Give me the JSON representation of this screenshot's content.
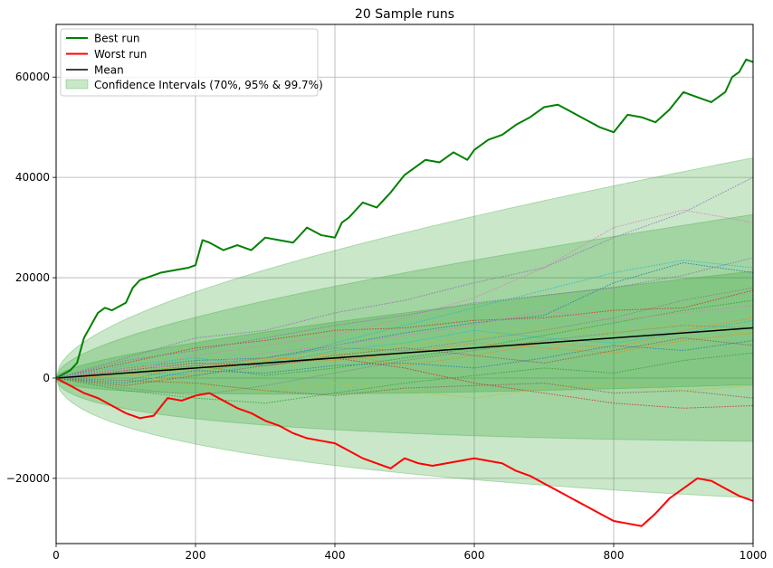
{
  "chart_data": {
    "type": "line",
    "title": "20 Sample runs",
    "xlabel": "",
    "ylabel": "",
    "xlim": [
      0,
      1000
    ],
    "ylim": [
      -33000,
      70500
    ],
    "grid": true,
    "legend_position": "top-left",
    "x_ticks": [
      0,
      200,
      400,
      600,
      800,
      1000
    ],
    "y_ticks": [
      -20000,
      0,
      20000,
      40000,
      60000
    ],
    "x_tick_labels": [
      "0",
      "200",
      "400",
      "600",
      "800",
      "1000"
    ],
    "y_tick_labels": [
      "−20000",
      "0",
      "20000",
      "40000",
      "60000"
    ],
    "legend": {
      "best": "Best run",
      "worst": "Worst run",
      "mean": "Mean",
      "ci": "Confidence Intervals (70%, 95% & 99.7%)"
    },
    "colors": {
      "best": "#008000",
      "worst": "#ff0000",
      "mean": "#000000",
      "ci_fill": "#2ca02c",
      "grid": "#b0b0b0"
    },
    "mean": {
      "x": [
        0,
        1000
      ],
      "y": [
        0,
        10000
      ]
    },
    "confidence_intervals": {
      "x": [
        0,
        1000
      ],
      "sigma_at_end": 11300,
      "levels": [
        {
          "label": "70%",
          "z": 1.0
        },
        {
          "label": "95%",
          "z": 2.0
        },
        {
          "label": "99.7%",
          "z": 3.0
        }
      ]
    },
    "series": [
      {
        "name": "Best run",
        "x": [
          0,
          20,
          30,
          40,
          50,
          60,
          70,
          80,
          100,
          110,
          120,
          130,
          150,
          170,
          190,
          200,
          210,
          220,
          240,
          260,
          280,
          300,
          320,
          340,
          360,
          380,
          400,
          410,
          420,
          440,
          460,
          480,
          500,
          520,
          530,
          550,
          570,
          590,
          600,
          620,
          640,
          660,
          680,
          700,
          720,
          740,
          760,
          780,
          800,
          820,
          840,
          860,
          880,
          900,
          920,
          940,
          960,
          970,
          980,
          990,
          1000
        ],
        "y": [
          0,
          1500,
          3000,
          8000,
          10500,
          13000,
          14000,
          13500,
          15000,
          18000,
          19500,
          20000,
          21000,
          21500,
          22000,
          22500,
          27500,
          27000,
          25500,
          26500,
          25500,
          28000,
          27500,
          27000,
          30000,
          28500,
          28000,
          31000,
          32000,
          35000,
          34000,
          37000,
          40500,
          42500,
          43500,
          43000,
          45000,
          43500,
          45500,
          47500,
          48500,
          50500,
          52000,
          54000,
          54500,
          53000,
          51500,
          50000,
          49000,
          52500,
          52000,
          51000,
          53500,
          57000,
          56000,
          55000,
          57000,
          60000,
          61000,
          63500,
          63000
        ]
      },
      {
        "name": "Worst run",
        "x": [
          0,
          20,
          40,
          60,
          80,
          100,
          120,
          140,
          160,
          180,
          200,
          220,
          240,
          260,
          280,
          300,
          320,
          340,
          360,
          380,
          400,
          420,
          440,
          460,
          480,
          500,
          520,
          540,
          560,
          580,
          600,
          620,
          640,
          660,
          680,
          700,
          720,
          740,
          760,
          780,
          800,
          820,
          840,
          860,
          880,
          900,
          920,
          940,
          960,
          980,
          1000
        ],
        "y": [
          0,
          -1500,
          -3000,
          -4000,
          -5500,
          -7000,
          -8000,
          -7500,
          -4000,
          -4500,
          -3500,
          -3000,
          -4500,
          -6000,
          -7000,
          -8500,
          -9500,
          -11000,
          -12000,
          -12500,
          -13000,
          -14500,
          -16000,
          -17000,
          -18000,
          -16000,
          -17000,
          -17500,
          -17000,
          -16500,
          -16000,
          -16500,
          -17000,
          -18500,
          -19500,
          -21000,
          -22500,
          -24000,
          -25500,
          -27000,
          -28500,
          -29000,
          -29500,
          -27000,
          -24000,
          -22000,
          -20000,
          -20500,
          -22000,
          -23500,
          -24500
        ]
      },
      {
        "name": "",
        "x": [
          0,
          100,
          200,
          300,
          400,
          500,
          600,
          700,
          800,
          900,
          1000
        ],
        "y": [
          0,
          2000,
          3500,
          4000,
          6500,
          9000,
          11000,
          12500,
          19000,
          23000,
          21000
        ],
        "color": "#1f77b4"
      },
      {
        "name": "",
        "x": [
          0,
          100,
          200,
          300,
          400,
          500,
          600,
          700,
          800,
          900,
          1000
        ],
        "y": [
          0,
          -1500,
          1000,
          3500,
          5000,
          2500,
          4500,
          7000,
          6000,
          9500,
          12000
        ],
        "color": "#ff7f0e"
      },
      {
        "name": "",
        "x": [
          0,
          100,
          200,
          300,
          400,
          500,
          600,
          700,
          800,
          900,
          1000
        ],
        "y": [
          0,
          1000,
          2500,
          500,
          2000,
          4000,
          6000,
          8500,
          11000,
          13500,
          15500
        ],
        "color": "#2ca02c"
      },
      {
        "name": "",
        "x": [
          0,
          100,
          200,
          300,
          400,
          500,
          600,
          700,
          800,
          900,
          1000
        ],
        "y": [
          0,
          3000,
          6000,
          7500,
          9500,
          10000,
          11500,
          12000,
          13500,
          14000,
          17500
        ],
        "color": "#d62728"
      },
      {
        "name": "",
        "x": [
          0,
          100,
          200,
          300,
          400,
          500,
          600,
          700,
          800,
          900,
          1000
        ],
        "y": [
          0,
          4000,
          8000,
          9500,
          13000,
          15500,
          19000,
          22000,
          28000,
          33000,
          40000
        ],
        "color": "#9467bd"
      },
      {
        "name": "",
        "x": [
          0,
          100,
          200,
          300,
          400,
          500,
          600,
          700,
          800,
          900,
          1000
        ],
        "y": [
          0,
          -500,
          -1000,
          -2500,
          -3500,
          -2000,
          -1500,
          -1000,
          -3000,
          -2500,
          -4000
        ],
        "color": "#8c564b"
      },
      {
        "name": "",
        "x": [
          0,
          100,
          200,
          300,
          400,
          500,
          600,
          700,
          800,
          900,
          1000
        ],
        "y": [
          0,
          1500,
          4500,
          6500,
          8500,
          12000,
          16000,
          22000,
          30000,
          33500,
          31000
        ],
        "color": "#e377c2"
      },
      {
        "name": "",
        "x": [
          0,
          100,
          200,
          300,
          400,
          500,
          600,
          700,
          800,
          900,
          1000
        ],
        "y": [
          0,
          -2000,
          -3500,
          -1500,
          1000,
          3500,
          5500,
          7500,
          9000,
          10500,
          10000
        ],
        "color": "#7f7f7f"
      },
      {
        "name": "",
        "x": [
          0,
          100,
          200,
          300,
          400,
          500,
          600,
          700,
          800,
          900,
          1000
        ],
        "y": [
          0,
          2500,
          1500,
          3500,
          4500,
          6500,
          8000,
          10000,
          9000,
          11000,
          8500
        ],
        "color": "#bcbd22"
      },
      {
        "name": "",
        "x": [
          0,
          100,
          200,
          300,
          400,
          500,
          600,
          700,
          800,
          900,
          1000
        ],
        "y": [
          0,
          1000,
          500,
          3000,
          7000,
          10500,
          14000,
          17500,
          21000,
          23500,
          22000
        ],
        "color": "#17becf"
      },
      {
        "name": "",
        "x": [
          0,
          100,
          200,
          300,
          400,
          500,
          600,
          700,
          800,
          900,
          1000
        ],
        "y": [
          0,
          -1000,
          1500,
          1000,
          2500,
          3000,
          2000,
          4000,
          6500,
          5500,
          7500
        ],
        "color": "#1f77b4"
      },
      {
        "name": "",
        "x": [
          0,
          100,
          200,
          300,
          400,
          500,
          600,
          700,
          800,
          900,
          1000
        ],
        "y": [
          0,
          500,
          2000,
          4000,
          3500,
          5000,
          7000,
          6000,
          5000,
          7500,
          9000
        ],
        "color": "#ff7f0e"
      },
      {
        "name": "",
        "x": [
          0,
          100,
          200,
          300,
          400,
          500,
          600,
          700,
          800,
          900,
          1000
        ],
        "y": [
          0,
          -2500,
          -4000,
          -5000,
          -3000,
          -1000,
          500,
          2000,
          1000,
          3500,
          5000
        ],
        "color": "#2ca02c"
      },
      {
        "name": "",
        "x": [
          0,
          100,
          200,
          300,
          400,
          500,
          600,
          700,
          800,
          900,
          1000
        ],
        "y": [
          0,
          1500,
          3000,
          2500,
          4000,
          2000,
          -1000,
          -3000,
          -5000,
          -6000,
          -5500
        ],
        "color": "#d62728"
      },
      {
        "name": "",
        "x": [
          0,
          100,
          200,
          300,
          400,
          500,
          600,
          700,
          800,
          900,
          1000
        ],
        "y": [
          0,
          3500,
          5500,
          8000,
          10500,
          12500,
          15000,
          16500,
          18000,
          20500,
          24000
        ],
        "color": "#9467bd"
      },
      {
        "name": "",
        "x": [
          0,
          100,
          200,
          300,
          400,
          500,
          600,
          700,
          800,
          900,
          1000
        ],
        "y": [
          0,
          -1500,
          500,
          2500,
          4500,
          6000,
          4500,
          3000,
          5500,
          8000,
          6500
        ],
        "color": "#8c564b"
      },
      {
        "name": "",
        "x": [
          0,
          100,
          200,
          300,
          400,
          500,
          600,
          700,
          800,
          900,
          1000
        ],
        "y": [
          0,
          2000,
          2500,
          5000,
          6500,
          8500,
          10500,
          13500,
          11500,
          13000,
          14500
        ],
        "color": "#e377c2"
      },
      {
        "name": "",
        "x": [
          0,
          100,
          200,
          300,
          400,
          500,
          600,
          700,
          800,
          900,
          1000
        ],
        "y": [
          0,
          -500,
          2500,
          4000,
          6000,
          5500,
          7500,
          9500,
          12000,
          15500,
          18000
        ],
        "color": "#7f7f7f"
      },
      {
        "name": "",
        "x": [
          0,
          100,
          200,
          300,
          400,
          500,
          600,
          700,
          800,
          900,
          1000
        ],
        "y": [
          0,
          1000,
          -1500,
          -2500,
          -1000,
          -2500,
          -4000,
          -2000,
          -1000,
          -2500,
          -1500
        ],
        "color": "#bcbd22"
      },
      {
        "name": "",
        "x": [
          0,
          100,
          200,
          300,
          400,
          500,
          600,
          700,
          800,
          900,
          1000
        ],
        "y": [
          0,
          2500,
          4000,
          2500,
          5500,
          7000,
          9500,
          8000,
          7000,
          9000,
          11500
        ],
        "color": "#17becf"
      }
    ]
  }
}
